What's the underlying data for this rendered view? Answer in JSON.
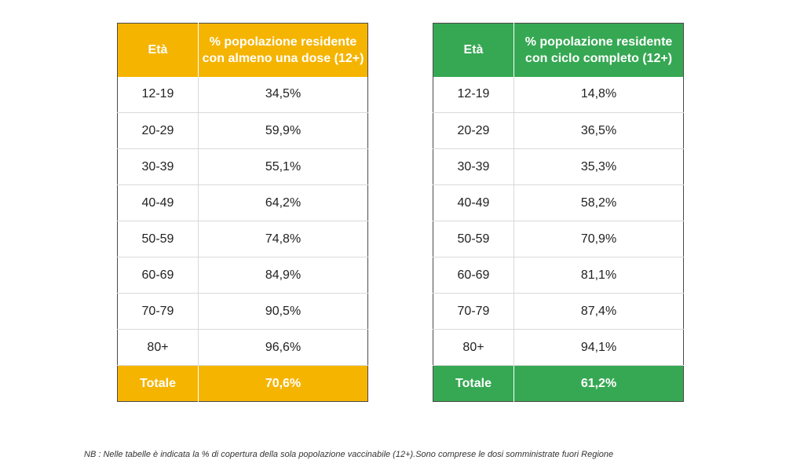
{
  "colors": {
    "left_accent": "#f5b400",
    "right_accent": "#36a853"
  },
  "left_table": {
    "header": {
      "col1": "Età",
      "col2": "% popolazione residente con almeno una dose (12+)"
    },
    "rows": [
      {
        "age": "12-19",
        "value": "34,5%"
      },
      {
        "age": "20-29",
        "value": "59,9%"
      },
      {
        "age": "30-39",
        "value": "55,1%"
      },
      {
        "age": "40-49",
        "value": "64,2%"
      },
      {
        "age": "50-59",
        "value": "74,8%"
      },
      {
        "age": "60-69",
        "value": "84,9%"
      },
      {
        "age": "70-79",
        "value": "90,5%"
      },
      {
        "age": "80+",
        "value": "96,6%"
      }
    ],
    "total": {
      "label": "Totale",
      "value": "70,6%"
    }
  },
  "right_table": {
    "header": {
      "col1": "Età",
      "col2": "% popolazione residente con ciclo completo (12+)"
    },
    "rows": [
      {
        "age": "12-19",
        "value": "14,8%"
      },
      {
        "age": "20-29",
        "value": "36,5%"
      },
      {
        "age": "30-39",
        "value": "35,3%"
      },
      {
        "age": "40-49",
        "value": "58,2%"
      },
      {
        "age": "50-59",
        "value": "70,9%"
      },
      {
        "age": "60-69",
        "value": "81,1%"
      },
      {
        "age": "70-79",
        "value": "87,4%"
      },
      {
        "age": "80+",
        "value": "94,1%"
      }
    ],
    "total": {
      "label": "Totale",
      "value": "61,2%"
    }
  },
  "footnote": "NB : Nelle tabelle è indicata la % di copertura della sola popolazione vaccinabile (12+).Sono comprese le dosi somministrate fuori Regione"
}
